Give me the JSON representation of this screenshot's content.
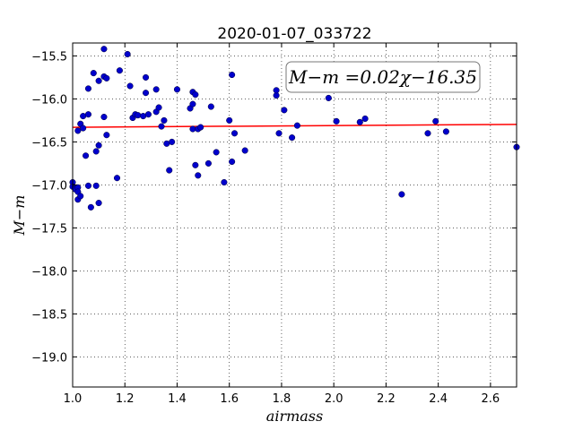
{
  "chart_data": {
    "type": "scatter",
    "title": "2020-01-07_033722",
    "xlabel": "airmass",
    "ylabel": "M−m",
    "xlim": [
      1.0,
      2.7
    ],
    "ylim": [
      -19.35,
      -15.35
    ],
    "y_inverted": true,
    "x_ticks": [
      1.0,
      1.2,
      1.4,
      1.6,
      1.8,
      2.0,
      2.2,
      2.4,
      2.6
    ],
    "x_tick_labels": [
      "1.0",
      "1.2",
      "1.4",
      "1.6",
      "1.8",
      "2.0",
      "2.2",
      "2.4",
      "2.6"
    ],
    "y_ticks": [
      -15.5,
      -16.0,
      -16.5,
      -17.0,
      -17.5,
      -18.0,
      -18.5,
      -19.0
    ],
    "y_tick_labels": [
      "−15.5",
      "−16.0",
      "−16.5",
      "−17.0",
      "−17.5",
      "−18.0",
      "−18.5",
      "−19.0"
    ],
    "grid": true,
    "annotation": "M−m =0.02χ−16.35",
    "fit": {
      "slope": 0.02,
      "intercept": -16.35,
      "color": "#ff0000"
    },
    "marker_color": "#0000cc",
    "points": [
      [
        1.0,
        -16.97
      ],
      [
        1.0,
        -17.02
      ],
      [
        1.01,
        -17.05
      ],
      [
        1.02,
        -17.03
      ],
      [
        1.02,
        -17.08
      ],
      [
        1.02,
        -17.17
      ],
      [
        1.03,
        -17.13
      ],
      [
        1.02,
        -16.37
      ],
      [
        1.03,
        -16.29
      ],
      [
        1.04,
        -16.34
      ],
      [
        1.04,
        -16.2
      ],
      [
        1.05,
        -16.66
      ],
      [
        1.06,
        -16.18
      ],
      [
        1.06,
        -15.88
      ],
      [
        1.06,
        -17.01
      ],
      [
        1.07,
        -17.26
      ],
      [
        1.08,
        -15.7
      ],
      [
        1.09,
        -16.61
      ],
      [
        1.09,
        -17.01
      ],
      [
        1.1,
        -16.54
      ],
      [
        1.1,
        -17.21
      ],
      [
        1.1,
        -15.79
      ],
      [
        1.12,
        -15.42
      ],
      [
        1.12,
        -15.74
      ],
      [
        1.12,
        -16.21
      ],
      [
        1.13,
        -16.42
      ],
      [
        1.13,
        -15.76
      ],
      [
        1.17,
        -16.92
      ],
      [
        1.18,
        -15.67
      ],
      [
        1.21,
        -15.48
      ],
      [
        1.22,
        -15.85
      ],
      [
        1.23,
        -16.22
      ],
      [
        1.24,
        -16.18
      ],
      [
        1.25,
        -16.19
      ],
      [
        1.27,
        -16.2
      ],
      [
        1.28,
        -15.75
      ],
      [
        1.28,
        -15.93
      ],
      [
        1.29,
        -16.18
      ],
      [
        1.32,
        -15.89
      ],
      [
        1.32,
        -16.15
      ],
      [
        1.33,
        -16.1
      ],
      [
        1.34,
        -16.32
      ],
      [
        1.35,
        -16.25
      ],
      [
        1.36,
        -16.52
      ],
      [
        1.37,
        -16.83
      ],
      [
        1.38,
        -16.5
      ],
      [
        1.4,
        -15.89
      ],
      [
        1.45,
        -16.11
      ],
      [
        1.46,
        -16.06
      ],
      [
        1.46,
        -15.92
      ],
      [
        1.46,
        -16.35
      ],
      [
        1.47,
        -16.77
      ],
      [
        1.47,
        -15.95
      ],
      [
        1.48,
        -16.89
      ],
      [
        1.48,
        -16.35
      ],
      [
        1.49,
        -16.33
      ],
      [
        1.52,
        -16.75
      ],
      [
        1.53,
        -16.09
      ],
      [
        1.55,
        -16.62
      ],
      [
        1.58,
        -16.97
      ],
      [
        1.6,
        -16.25
      ],
      [
        1.61,
        -16.73
      ],
      [
        1.61,
        -15.72
      ],
      [
        1.62,
        -16.4
      ],
      [
        1.66,
        -16.6
      ],
      [
        1.78,
        -15.96
      ],
      [
        1.78,
        -15.9
      ],
      [
        1.79,
        -16.4
      ],
      [
        1.81,
        -16.13
      ],
      [
        1.84,
        -16.45
      ],
      [
        1.86,
        -16.31
      ],
      [
        1.98,
        -15.99
      ],
      [
        2.01,
        -16.26
      ],
      [
        2.1,
        -16.27
      ],
      [
        2.12,
        -16.23
      ],
      [
        2.26,
        -17.11
      ],
      [
        2.36,
        -16.4
      ],
      [
        2.39,
        -16.26
      ],
      [
        2.43,
        -16.38
      ],
      [
        2.7,
        -16.56
      ]
    ]
  }
}
